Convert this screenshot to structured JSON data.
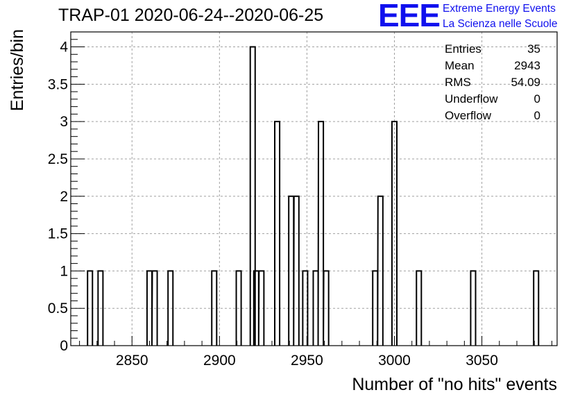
{
  "title": "TRAP-01 2020-06-24--2020-06-25",
  "logo": {
    "mark": "EEE",
    "line1": "Extreme Energy Events",
    "line2": "La Scienza nelle Scuole"
  },
  "stats": [
    {
      "name": "Entries",
      "value": "35"
    },
    {
      "name": "Mean",
      "value": "2943"
    },
    {
      "name": "RMS",
      "value": "54.09"
    },
    {
      "name": "Underflow",
      "value": "0"
    },
    {
      "name": "Overflow",
      "value": "0"
    }
  ],
  "chart_data": {
    "type": "bar",
    "title": "TRAP-01 2020-06-24--2020-06-25",
    "xlabel": "Number of \"no hits\" events",
    "ylabel": "Entries/bin",
    "xlim": [
      2815,
      3093
    ],
    "ylim": [
      0,
      4.2
    ],
    "bin_width": 2.8,
    "bins": [
      {
        "x": 2826,
        "count": 1
      },
      {
        "x": 2832,
        "count": 1
      },
      {
        "x": 2860,
        "count": 1
      },
      {
        "x": 2863,
        "count": 1
      },
      {
        "x": 2872,
        "count": 1
      },
      {
        "x": 2897,
        "count": 1
      },
      {
        "x": 2911,
        "count": 1
      },
      {
        "x": 2919,
        "count": 4
      },
      {
        "x": 2921,
        "count": 1
      },
      {
        "x": 2924,
        "count": 1
      },
      {
        "x": 2933,
        "count": 3
      },
      {
        "x": 2941,
        "count": 2
      },
      {
        "x": 2944,
        "count": 2
      },
      {
        "x": 2949,
        "count": 1
      },
      {
        "x": 2955,
        "count": 1
      },
      {
        "x": 2958,
        "count": 3
      },
      {
        "x": 2961,
        "count": 1
      },
      {
        "x": 2989,
        "count": 1
      },
      {
        "x": 2992,
        "count": 2
      },
      {
        "x": 3000,
        "count": 3
      },
      {
        "x": 3014,
        "count": 1
      },
      {
        "x": 3045,
        "count": 1
      },
      {
        "x": 3081,
        "count": 1
      }
    ],
    "x_ticks": [
      2850,
      2900,
      2950,
      3000,
      3050
    ],
    "y_ticks": [
      0,
      0.5,
      1,
      1.5,
      2,
      2.5,
      3,
      3.5,
      4
    ],
    "y_tick_labels": [
      "0",
      "0.5",
      "1",
      "1.5",
      "2",
      "2.5",
      "3",
      "3.5",
      "4"
    ],
    "grid": true,
    "line_color": "#000000",
    "grid_color": "#a0a0a0"
  }
}
